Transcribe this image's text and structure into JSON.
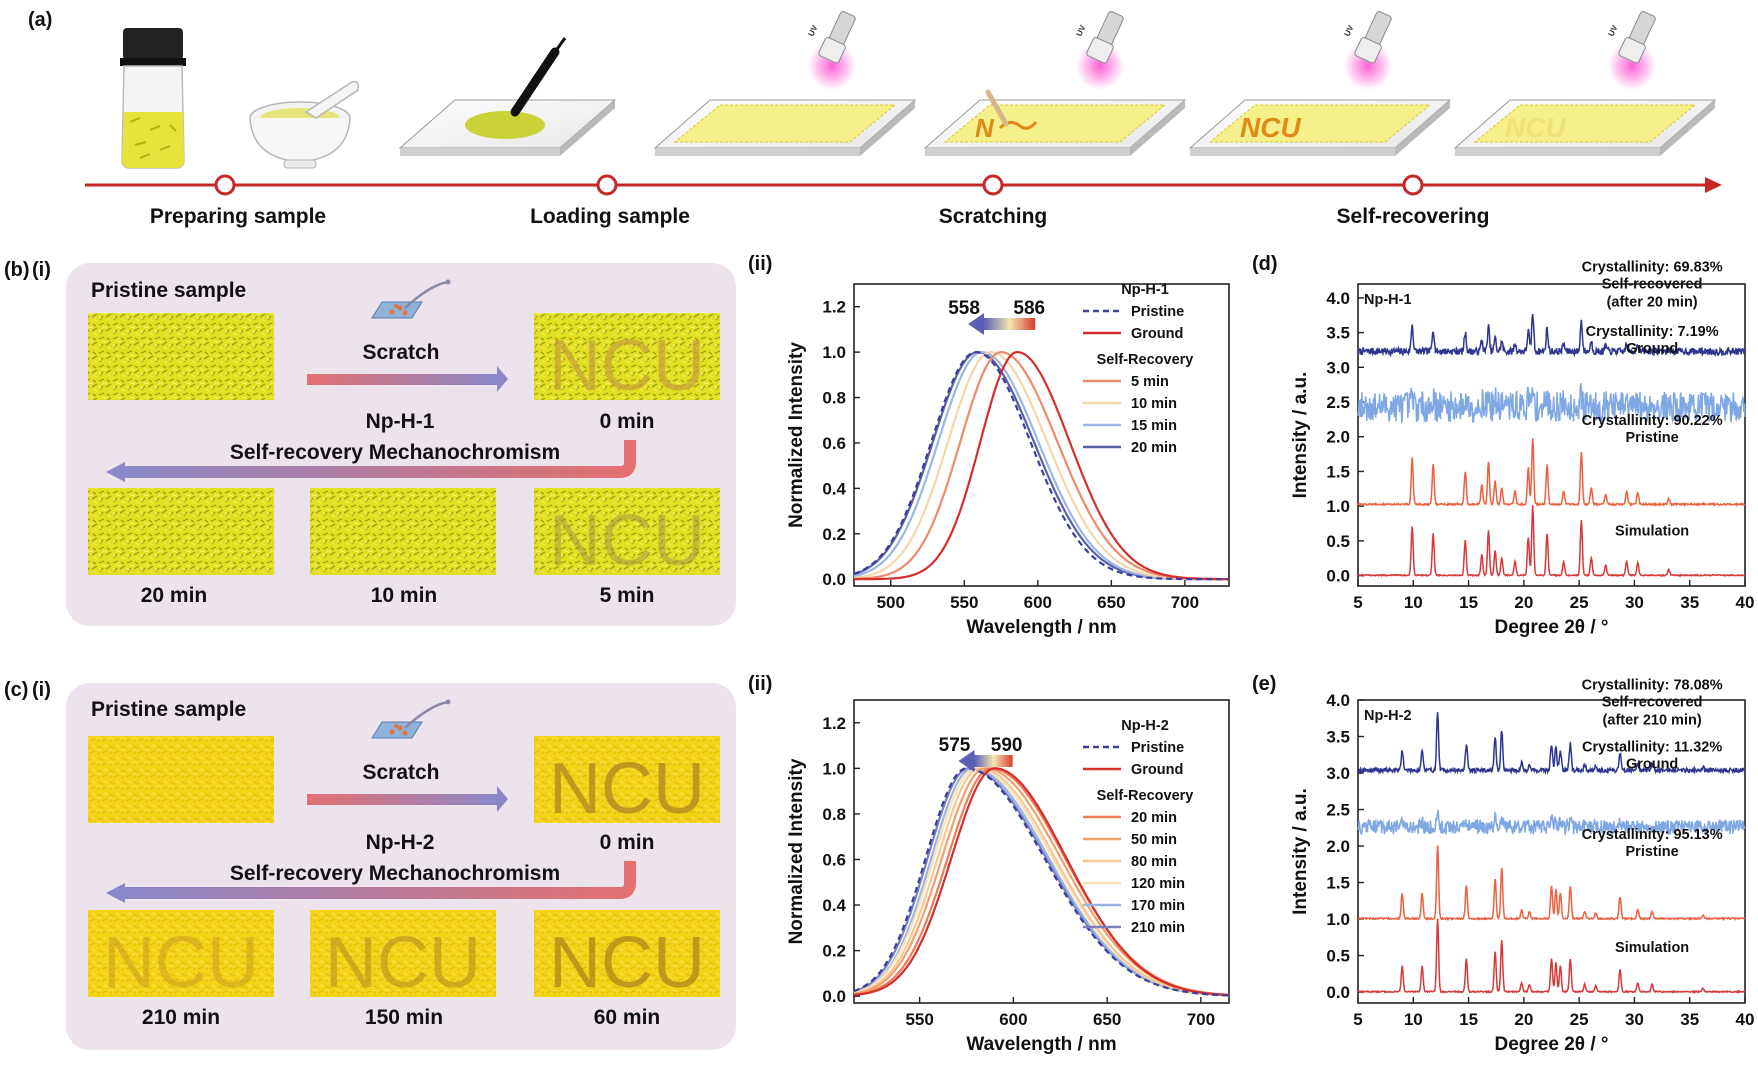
{
  "panel_labels": {
    "a": "(a)",
    "b": "(b)",
    "bi": "(i)",
    "bii": "(ii)",
    "c": "(c)",
    "ci": "(i)",
    "cii": "(ii)",
    "d": "(d)",
    "e": "(e)"
  },
  "timeline": {
    "steps": [
      "Preparing sample",
      "Loading sample",
      "Scratching",
      "Self-recovering"
    ],
    "plate_text_scratch": "N",
    "plate_text_ncu": "NCU",
    "uv_label": "UV"
  },
  "panel_b": {
    "pristine": "Pristine sample",
    "scratch": "Scratch",
    "compound": "Np-H-1",
    "process": "Self-recovery  Mechanochromism",
    "time_0": "0 min",
    "times": [
      "20 min",
      "10 min",
      "5 min"
    ],
    "plate_text": "NCU"
  },
  "panel_c": {
    "pristine": "Pristine sample",
    "scratch": "Scratch",
    "compound": "Np-H-2",
    "process": "Self-recovery  Mechanochromism",
    "time_0": "0 min",
    "times": [
      "210 min",
      "150 min",
      "60 min"
    ],
    "plate_text": "NCU"
  },
  "chart_data": [
    {
      "id": "b-ii",
      "type": "line",
      "xlabel": "Wavelength / nm",
      "ylabel": "Normalized Intensity",
      "xlim": [
        475,
        730
      ],
      "ylim": [
        -0.03,
        1.3
      ],
      "xticks": [
        500,
        550,
        600,
        650,
        700
      ],
      "yticks": [
        0.0,
        0.2,
        0.4,
        0.6,
        0.8,
        1.0,
        1.2
      ],
      "shift_from": "586",
      "shift_to": "558",
      "legend_title": "Np-H-1",
      "legend_subtitle": "Self-Recovery",
      "legend_position": "top-right",
      "series": [
        {
          "name": "Pristine",
          "peak": 558,
          "sl": 46,
          "sr": 56,
          "color": "#3a3e9e",
          "dashed": true,
          "group": "top"
        },
        {
          "name": "Ground",
          "peak": 586,
          "sl": 38,
          "sr": 54,
          "color": "#d42f2c",
          "dashed": false,
          "group": "top"
        },
        {
          "name": "5 min",
          "peak": 575,
          "sl": 42,
          "sr": 58,
          "color": "#ef8a6a",
          "dashed": false,
          "group": "sr"
        },
        {
          "name": "10 min",
          "peak": 568,
          "sl": 44,
          "sr": 58,
          "color": "#f3d7a8",
          "dashed": false,
          "group": "sr"
        },
        {
          "name": "15 min",
          "peak": 562,
          "sl": 45,
          "sr": 58,
          "color": "#9bb6e3",
          "dashed": false,
          "group": "sr"
        },
        {
          "name": "20 min",
          "peak": 559,
          "sl": 46,
          "sr": 58,
          "color": "#5b5fa8",
          "dashed": false,
          "group": "sr"
        }
      ]
    },
    {
      "id": "c-ii",
      "type": "line",
      "xlabel": "Wavelength / nm",
      "ylabel": "Normalized Intensity",
      "xlim": [
        515,
        715
      ],
      "ylim": [
        -0.03,
        1.3
      ],
      "xticks": [
        550,
        600,
        650,
        700
      ],
      "yticks": [
        0.0,
        0.2,
        0.4,
        0.6,
        0.8,
        1.0,
        1.2
      ],
      "shift_from": "590",
      "shift_to": "575",
      "legend_title": "Np-H-2",
      "legend_subtitle": "Self-Recovery",
      "legend_position": "top-right",
      "series": [
        {
          "name": "Pristine",
          "peak": 575,
          "sl": 33,
          "sr": 63,
          "color": "#3a3e9e",
          "dashed": true,
          "group": "top"
        },
        {
          "name": "Ground",
          "peak": 590,
          "sl": 35,
          "sr": 58,
          "color": "#d42f2c",
          "dashed": false,
          "group": "top"
        },
        {
          "name": "20 min",
          "peak": 588,
          "sl": 35,
          "sr": 60,
          "color": "#ee7d5c",
          "dashed": false,
          "group": "sr"
        },
        {
          "name": "50 min",
          "peak": 585,
          "sl": 35,
          "sr": 61,
          "color": "#f0a06e",
          "dashed": false,
          "group": "sr"
        },
        {
          "name": "80 min",
          "peak": 582,
          "sl": 34,
          "sr": 61,
          "color": "#f5c98f",
          "dashed": false,
          "group": "sr"
        },
        {
          "name": "120 min",
          "peak": 580,
          "sl": 34,
          "sr": 62,
          "color": "#f8e2b8",
          "dashed": false,
          "group": "sr"
        },
        {
          "name": "170 min",
          "peak": 578,
          "sl": 33,
          "sr": 62,
          "color": "#9ab4e2",
          "dashed": false,
          "group": "sr"
        },
        {
          "name": "210 min",
          "peak": 576,
          "sl": 33,
          "sr": 63,
          "color": "#7b7fbf",
          "dashed": false,
          "group": "sr"
        }
      ]
    },
    {
      "id": "d",
      "type": "line",
      "xlabel": "Degree 2θ / °",
      "ylabel": "Intensity / a.u.",
      "xlim": [
        5,
        40
      ],
      "ylim": [
        -0.15,
        4.2
      ],
      "xticks": [
        5,
        10,
        15,
        20,
        25,
        30,
        35,
        40
      ],
      "yticks": [
        0.0,
        0.5,
        1.0,
        1.5,
        2.0,
        2.5,
        3.0,
        3.5,
        4.0
      ],
      "compound": "Np-H-1",
      "series": [
        {
          "name": "Self-recovered",
          "label": "Self-recovered",
          "label2": "(after 20 min)",
          "crystallinity": "Crystallinity: 69.83%",
          "offset": 3.2,
          "color": "#2f3590",
          "noise": 0.05,
          "scale": 0.55
        },
        {
          "name": "Ground",
          "label": "Ground",
          "crystallinity": "Crystallinity:  7.19%",
          "offset": 2.3,
          "color": "#7fa7e4",
          "noise": 0.22,
          "scale": 0.22
        },
        {
          "name": "Pristine",
          "label": "Pristine",
          "crystallinity": "Crystallinity: 90.22%",
          "offset": 1.02,
          "color": "#ee6040",
          "noise": 0.012,
          "scale": 0.95
        },
        {
          "name": "Simulation",
          "label": "Simulation",
          "crystallinity": "",
          "offset": 0.0,
          "color": "#d63a3a",
          "noise": 0.008,
          "scale": 1.0
        }
      ],
      "peaks": [
        [
          9.9,
          0.7
        ],
        [
          11.8,
          0.6
        ],
        [
          14.7,
          0.5
        ],
        [
          16.2,
          0.3
        ],
        [
          16.8,
          0.65
        ],
        [
          17.4,
          0.35
        ],
        [
          18.0,
          0.25
        ],
        [
          19.2,
          0.2
        ],
        [
          20.4,
          0.55
        ],
        [
          20.8,
          1.0
        ],
        [
          22.1,
          0.6
        ],
        [
          23.6,
          0.2
        ],
        [
          25.2,
          0.8
        ],
        [
          26.1,
          0.25
        ],
        [
          27.4,
          0.15
        ],
        [
          29.3,
          0.2
        ],
        [
          30.3,
          0.18
        ],
        [
          33.1,
          0.08
        ]
      ]
    },
    {
      "id": "e",
      "type": "line",
      "xlabel": "Degree 2θ / °",
      "ylabel": "Intensity / a.u.",
      "xlim": [
        5,
        40
      ],
      "ylim": [
        -0.15,
        4.0
      ],
      "xticks": [
        5,
        10,
        15,
        20,
        25,
        30,
        35,
        40
      ],
      "yticks": [
        0.0,
        0.5,
        1.0,
        1.5,
        2.0,
        2.5,
        3.0,
        3.5,
        4.0
      ],
      "compound": "Np-H-2",
      "series": [
        {
          "name": "Self-recovered",
          "label": "Self-recovered",
          "label2": "(after 210 min)",
          "crystallinity": "Crystallinity: 78.08%",
          "offset": 3.02,
          "color": "#2f3590",
          "noise": 0.03,
          "scale": 0.8
        },
        {
          "name": "Ground",
          "label": "Ground",
          "crystallinity": "Crystallinity: 11.32%",
          "offset": 2.2,
          "color": "#7fa7e4",
          "noise": 0.1,
          "scale": 0.2
        },
        {
          "name": "Pristine",
          "label": "Pristine",
          "crystallinity": "Crystallinity: 95.13%",
          "offset": 1.0,
          "color": "#ee6040",
          "noise": 0.01,
          "scale": 1.0
        },
        {
          "name": "Simulation",
          "label": "Simulation",
          "crystallinity": "",
          "offset": 0.0,
          "color": "#d63a3a",
          "noise": 0.008,
          "scale": 1.0
        }
      ],
      "peaks": [
        [
          9.0,
          0.35
        ],
        [
          10.8,
          0.35
        ],
        [
          12.2,
          1.0
        ],
        [
          14.8,
          0.45
        ],
        [
          17.4,
          0.55
        ],
        [
          18.0,
          0.7
        ],
        [
          19.8,
          0.12
        ],
        [
          20.5,
          0.1
        ],
        [
          22.5,
          0.45
        ],
        [
          22.9,
          0.4
        ],
        [
          23.3,
          0.35
        ],
        [
          24.2,
          0.45
        ],
        [
          25.5,
          0.1
        ],
        [
          26.5,
          0.08
        ],
        [
          28.7,
          0.3
        ],
        [
          30.3,
          0.12
        ],
        [
          31.6,
          0.1
        ],
        [
          36.2,
          0.05
        ]
      ]
    }
  ]
}
